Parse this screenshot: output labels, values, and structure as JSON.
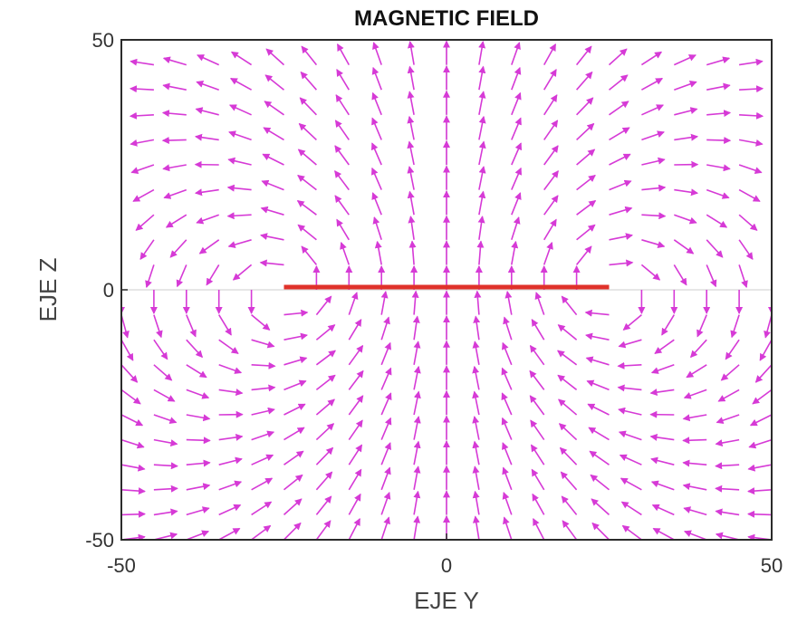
{
  "chart_data": {
    "type": "quiver",
    "title": "MAGNETIC FIELD",
    "xlabel": "EJE Y",
    "ylabel": "EJE Z",
    "xlim": [
      -50,
      50
    ],
    "ylim": [
      -50,
      50
    ],
    "xticks": [
      -50,
      0,
      50
    ],
    "yticks": [
      -50,
      0,
      50
    ],
    "grid": false,
    "zero_lines": true,
    "conductor": {
      "y": [
        -25,
        25
      ],
      "z": 0,
      "color": "#e0322a"
    },
    "field": {
      "color": "#d63ad6",
      "grid_step": 5,
      "description_values": {
        "source_points": [
          [
            -25,
            0
          ],
          [
            25,
            0
          ]
        ],
        "above_axis_direction": "toward origin",
        "below_axis_direction": "away from origin"
      }
    }
  }
}
